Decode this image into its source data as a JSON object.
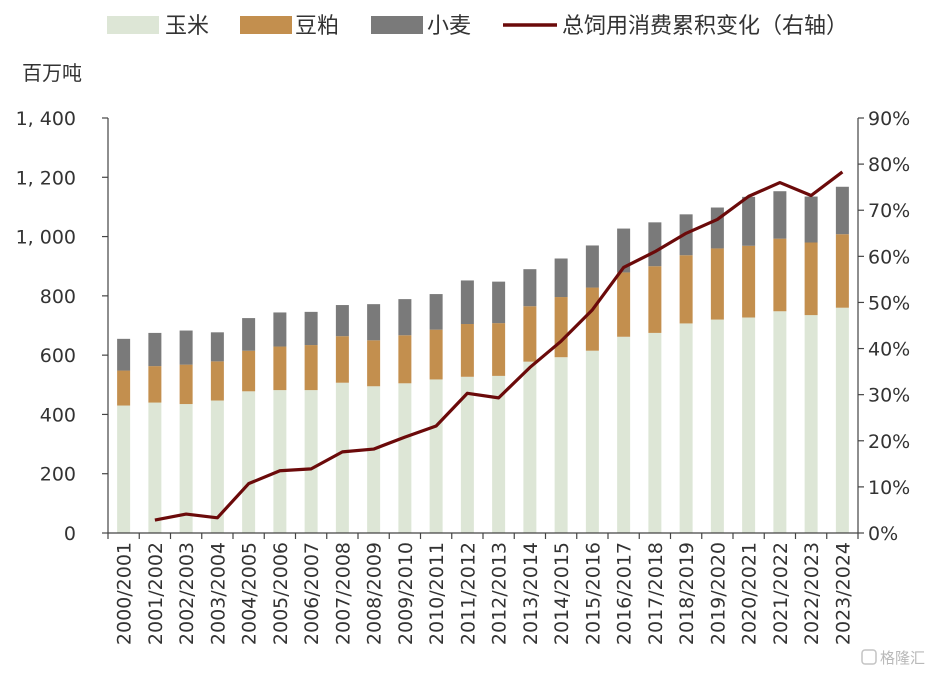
{
  "chart_data": {
    "type": "bar",
    "stacked": true,
    "categories": [
      "2000/2001",
      "2001/2002",
      "2002/2003",
      "2003/2004",
      "2004/2005",
      "2005/2006",
      "2006/2007",
      "2007/2008",
      "2008/2009",
      "2009/2010",
      "2010/2011",
      "2011/2012",
      "2012/2013",
      "2013/2014",
      "2014/2015",
      "2015/2016",
      "2016/2017",
      "2017/2018",
      "2018/2019",
      "2019/2020",
      "2020/2021",
      "2021/2022",
      "2022/2023",
      "2023/2024"
    ],
    "ylabel": "百万吨",
    "ylim": [
      0,
      1400
    ],
    "yticks": [
      0,
      200,
      400,
      600,
      800,
      1000,
      1200,
      1400
    ],
    "ytick_labels": [
      "0",
      "200",
      "400",
      "600",
      "800",
      "1, 000",
      "1, 200",
      "1, 400"
    ],
    "y2lim": [
      0,
      90
    ],
    "y2ticks": [
      0,
      10,
      20,
      30,
      40,
      50,
      60,
      70,
      80,
      90
    ],
    "y2tick_labels": [
      "0%",
      "10%",
      "20%",
      "30%",
      "40%",
      "50%",
      "60%",
      "70%",
      "80%",
      "90%"
    ],
    "series": [
      {
        "name": "玉米",
        "kind": "bar",
        "color": "#dde6d6",
        "values": [
          430,
          440,
          435,
          447,
          478,
          482,
          482,
          507,
          495,
          505,
          518,
          527,
          530,
          578,
          593,
          615,
          662,
          675,
          707,
          720,
          727,
          748,
          735,
          760
        ]
      },
      {
        "name": "豆粕",
        "kind": "bar",
        "color": "#c38f4e",
        "values": [
          118,
          123,
          133,
          132,
          137,
          147,
          152,
          157,
          155,
          162,
          168,
          178,
          178,
          187,
          203,
          213,
          217,
          225,
          230,
          240,
          242,
          245,
          245,
          248
        ]
      },
      {
        "name": "小麦",
        "kind": "bar",
        "color": "#7a7a7a",
        "values": [
          107,
          112,
          115,
          98,
          110,
          115,
          112,
          105,
          122,
          122,
          120,
          147,
          140,
          125,
          130,
          142,
          148,
          148,
          138,
          138,
          165,
          160,
          155,
          160
        ]
      },
      {
        "name": "总饲用消费累积变化（右轴）",
        "kind": "line",
        "axis": "right",
        "color": "#6b0a0a",
        "values": [
          null,
          2.8,
          4.1,
          3.3,
          10.7,
          13.5,
          13.9,
          17.6,
          18.2,
          20.8,
          23.2,
          30.3,
          29.3,
          35.9,
          41.6,
          48.4,
          57.6,
          61.0,
          65.0,
          68.0,
          73.0,
          76.0,
          73.2,
          78.3
        ]
      }
    ],
    "legend_position": "top",
    "grid": false
  },
  "watermark": "格隆汇"
}
